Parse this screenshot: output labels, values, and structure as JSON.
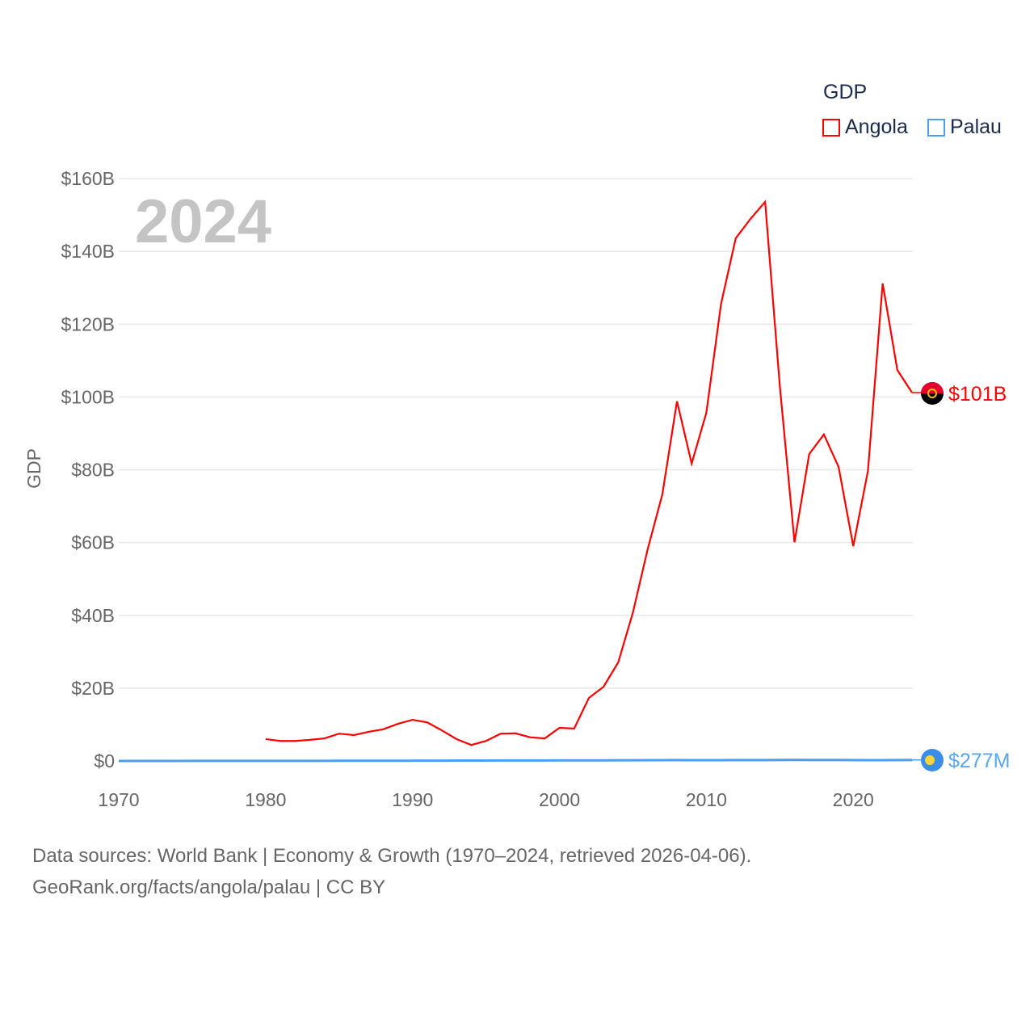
{
  "chart_data": {
    "type": "line",
    "title": "GDP",
    "year_label": "2024",
    "xlabel": "",
    "ylabel": "GDP",
    "xlim": [
      1970,
      2024
    ],
    "ylim": [
      0,
      160
    ],
    "x_ticks": [
      "1970",
      "1980",
      "1990",
      "2000",
      "2010",
      "2020"
    ],
    "y_ticks": [
      "$0",
      "$20B",
      "$40B",
      "$60B",
      "$80B",
      "$100B",
      "$120B",
      "$140B",
      "$160B"
    ],
    "grid": true,
    "legend_position": "top-right",
    "series": [
      {
        "name": "Angola",
        "color": "#ff0000",
        "end_label": "$101B",
        "start_year": 1980,
        "values": [
          6.0,
          5.5,
          5.5,
          5.8,
          6.2,
          7.5,
          7.1,
          8.0,
          8.7,
          10.2,
          11.3,
          10.6,
          8.4,
          6.0,
          4.4,
          5.5,
          7.5,
          7.6,
          6.5,
          6.2,
          9.1,
          8.9,
          17.3,
          20.4,
          27.1,
          40.8,
          58.1,
          73.2,
          98.8,
          81.7,
          95.7,
          125.6,
          143.6,
          148.9,
          153.6,
          103.0,
          60.1,
          84.3,
          89.7,
          80.8,
          59.0,
          79.7,
          131.2,
          107.4,
          101.2
        ]
      },
      {
        "name": "Palau",
        "color": "#4a9ff5",
        "end_label": "$277M",
        "start_year": 1970,
        "values": [
          0.01,
          0.01,
          0.01,
          0.01,
          0.01,
          0.02,
          0.02,
          0.02,
          0.02,
          0.03,
          0.03,
          0.03,
          0.04,
          0.04,
          0.04,
          0.05,
          0.05,
          0.05,
          0.06,
          0.06,
          0.07,
          0.08,
          0.09,
          0.1,
          0.11,
          0.12,
          0.13,
          0.14,
          0.14,
          0.15,
          0.16,
          0.17,
          0.17,
          0.18,
          0.19,
          0.2,
          0.21,
          0.23,
          0.25,
          0.23,
          0.22,
          0.23,
          0.24,
          0.25,
          0.26,
          0.29,
          0.31,
          0.29,
          0.29,
          0.28,
          0.26,
          0.22,
          0.23,
          0.26,
          0.277
        ]
      }
    ]
  },
  "footer": {
    "line1": "Data sources: World Bank | Economy & Growth (1970–2024, retrieved 2026-04-06).",
    "line2": "GeoRank.org/facts/angola/palau | CC BY"
  }
}
